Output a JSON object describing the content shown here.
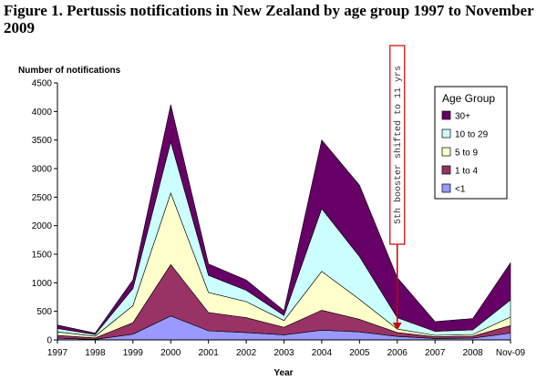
{
  "figure_title": "Figure 1. Pertussis notifications in New Zealand by age group 1997 to November 2009",
  "chart_data": {
    "type": "area",
    "stacked": true,
    "ylabel": "Number of notifications",
    "xlabel": "Year",
    "ylim": [
      0,
      4500
    ],
    "yticks": [
      "0",
      "500",
      "1000",
      "1500",
      "2000",
      "2500",
      "3000",
      "3500",
      "4000",
      "4500"
    ],
    "categories": [
      "1997",
      "1998",
      "1999",
      "2000",
      "2001",
      "2002",
      "2003",
      "2004",
      "2005",
      "2006",
      "2007",
      "2008",
      "Nov-09"
    ],
    "series": [
      {
        "name": "<1",
        "color": "#9999ff",
        "values": [
          30,
          10,
          100,
          420,
          160,
          130,
          90,
          170,
          140,
          60,
          25,
          30,
          120
        ]
      },
      {
        "name": "1 to 4",
        "color": "#993366",
        "values": [
          50,
          25,
          200,
          900,
          320,
          260,
          130,
          350,
          220,
          70,
          30,
          35,
          130
        ]
      },
      {
        "name": "5 to 9",
        "color": "#ffffcc",
        "values": [
          60,
          30,
          300,
          1250,
          350,
          280,
          120,
          680,
          350,
          60,
          25,
          30,
          150
        ]
      },
      {
        "name": "10 to 29",
        "color": "#ccffff",
        "values": [
          60,
          30,
          300,
          900,
          300,
          200,
          90,
          1100,
          750,
          200,
          70,
          80,
          300
        ]
      },
      {
        "name": "30+",
        "color": "#660066",
        "values": [
          60,
          25,
          150,
          650,
          200,
          180,
          80,
          1200,
          1250,
          700,
          170,
          200,
          650
        ]
      }
    ],
    "legend": {
      "title": "Age Group",
      "placement": "right"
    },
    "annotation": {
      "text": "5th booster shifted to 11 yrs",
      "category": "2006"
    },
    "grid": false
  }
}
